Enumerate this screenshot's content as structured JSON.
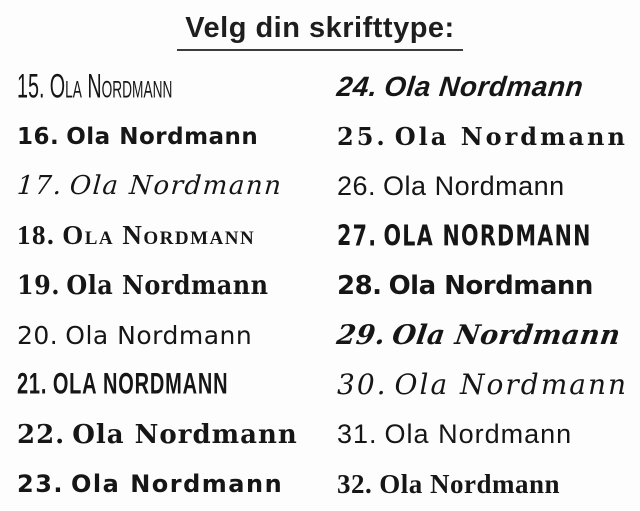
{
  "page": {
    "background": "#fdfdfd",
    "text_color": "#161616",
    "underline_color": "#3c3c3c"
  },
  "title": {
    "text": "Velg din skrifttype:"
  },
  "font_list": {
    "left": [
      {
        "number": "15.",
        "name": "Ola Nordmann",
        "label": "15. Ola Nordmann",
        "style": "tall-condensed-handwritten-caps"
      },
      {
        "number": "16.",
        "name": "Ola Nordmann",
        "label": "16. Ola Nordmann",
        "style": "bold-rounded-marker-sans"
      },
      {
        "number": "17.",
        "name": "Ola Nordmann",
        "label": "17. Ola Nordmann",
        "style": "flowing-italic-script"
      },
      {
        "number": "18.",
        "name": "Ola Nordmann",
        "label": "18. Ola Nordmann",
        "style": "serif-small-caps"
      },
      {
        "number": "19.",
        "name": "Ola Nordmann",
        "label": "19. Ola Nordmann",
        "style": "condensed-blackletter"
      },
      {
        "number": "20.",
        "name": "Ola Nordmann",
        "label": "20. Ola Nordmann",
        "style": "quirky-rounded-sans"
      },
      {
        "number": "21.",
        "name": "Ola Nordmann",
        "label": "21. OLA NORDMANN",
        "style": "angular-runic-condensed-caps"
      },
      {
        "number": "22.",
        "name": "Ola Nordmann",
        "label": "22. Ola Nordmann",
        "style": "fraktur-blackletter"
      },
      {
        "number": "23.",
        "name": "Ola Nordmann",
        "label": "23. Ola Nordmann",
        "style": "bold-handwritten-marker"
      }
    ],
    "right": [
      {
        "number": "24.",
        "name": "Ola Nordmann",
        "label": "24. Ola Nordmann",
        "style": "heavy-brush-script-italic"
      },
      {
        "number": "25.",
        "name": "Ola Nordmann",
        "label": "25. Ola Nordmann",
        "style": "celtic-uncial-wide"
      },
      {
        "number": "26.",
        "name": "Ola Nordmann",
        "label": "26. Ola Nordmann",
        "style": "clean-rounded-sans"
      },
      {
        "number": "27.",
        "name": "Ola Nordmann",
        "label": "27. OLA NORDMANN",
        "style": "bold-condensed-display-caps"
      },
      {
        "number": "28.",
        "name": "Ola Nordmann",
        "label": "28. Ola Nordmann",
        "style": "heavy-black-sans"
      },
      {
        "number": "29.",
        "name": "Ola Nordmann",
        "label": "29. Ola Nordmann",
        "style": "bold-italic-retro-script"
      },
      {
        "number": "30.",
        "name": "Ola Nordmann",
        "label": "30. Ola Nordmann",
        "style": "elegant-flourished-script"
      },
      {
        "number": "31.",
        "name": "Ola Nordmann",
        "label": "31. Ola Nordmann",
        "style": "light-flared-humanist"
      },
      {
        "number": "32.",
        "name": "Ola Nordmann",
        "label": "32. Ola Nordmann",
        "style": "bold-serif"
      }
    ]
  }
}
